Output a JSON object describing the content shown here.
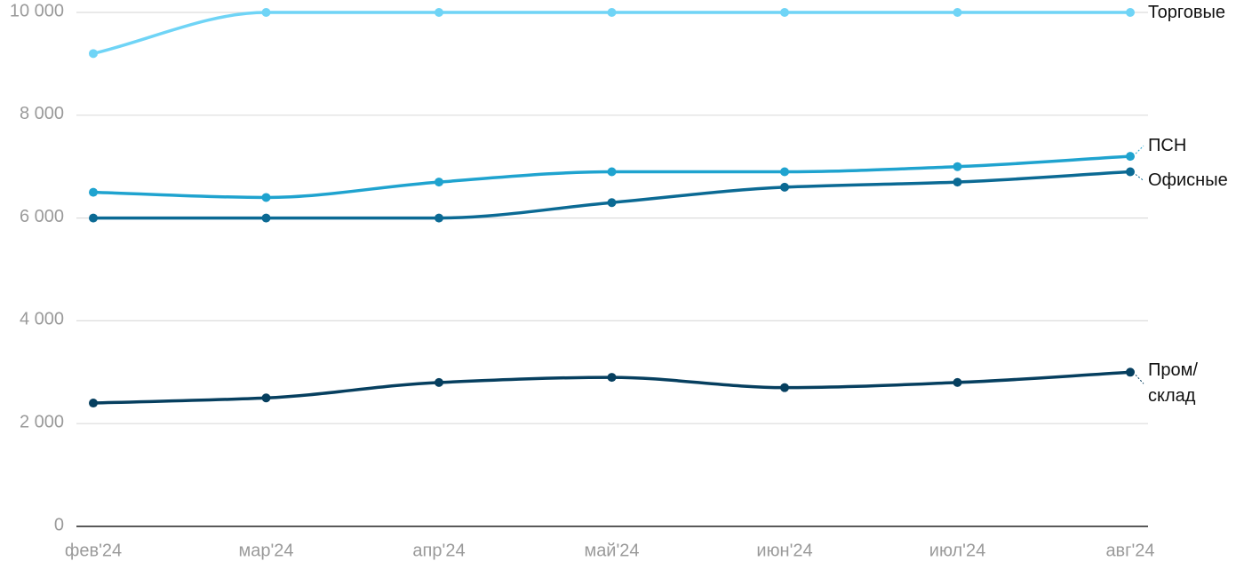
{
  "chart_data": {
    "type": "line",
    "categories": [
      "фев'24",
      "мар'24",
      "апр'24",
      "май'24",
      "июн'24",
      "июл'24",
      "авг'24"
    ],
    "series": [
      {
        "name": "Торговые",
        "color": "#6fd4f6",
        "values": [
          9200,
          10000,
          10000,
          10000,
          10000,
          10000,
          10000
        ]
      },
      {
        "name": "ПСН",
        "color": "#1fa3cf",
        "values": [
          6500,
          6400,
          6700,
          6900,
          6900,
          7000,
          7200
        ]
      },
      {
        "name": "Офисные",
        "color": "#0b6a94",
        "values": [
          6000,
          6000,
          6000,
          6300,
          6600,
          6700,
          6900
        ]
      },
      {
        "name": "Пром/ склад",
        "color": "#063f5f",
        "values": [
          2400,
          2500,
          2800,
          2900,
          2700,
          2800,
          3000
        ]
      }
    ],
    "ylim": [
      0,
      10000
    ],
    "yticks": [
      0,
      {
        "value": 2000,
        "label": "2 000"
      },
      {
        "value": 4000,
        "label": "4 000"
      },
      {
        "value": 6000,
        "label": "6 000"
      },
      {
        "value": 8000,
        "label": "8 000"
      },
      {
        "value": 10000,
        "label": "10 000"
      }
    ],
    "grid": true
  }
}
